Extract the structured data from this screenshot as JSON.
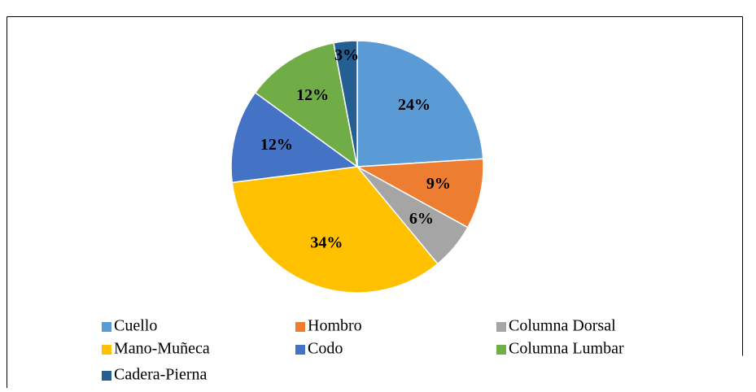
{
  "chart_data": {
    "type": "pie",
    "categories": [
      "Cuello",
      "Hombro",
      "Columna Dorsal",
      "Mano-Muñeca",
      "Codo",
      "Columna Lumbar",
      "Cadera-Pierna"
    ],
    "values": [
      24,
      9,
      6,
      34,
      12,
      12,
      3
    ],
    "value_labels": [
      "24%",
      "9%",
      "6%",
      "34%",
      "12%",
      "12%",
      "3%"
    ],
    "colors": [
      "#5b9bd5",
      "#ed7d31",
      "#a5a5a5",
      "#ffc000",
      "#4472c4",
      "#70ad47",
      "#255e91"
    ],
    "legend": "bottom"
  }
}
